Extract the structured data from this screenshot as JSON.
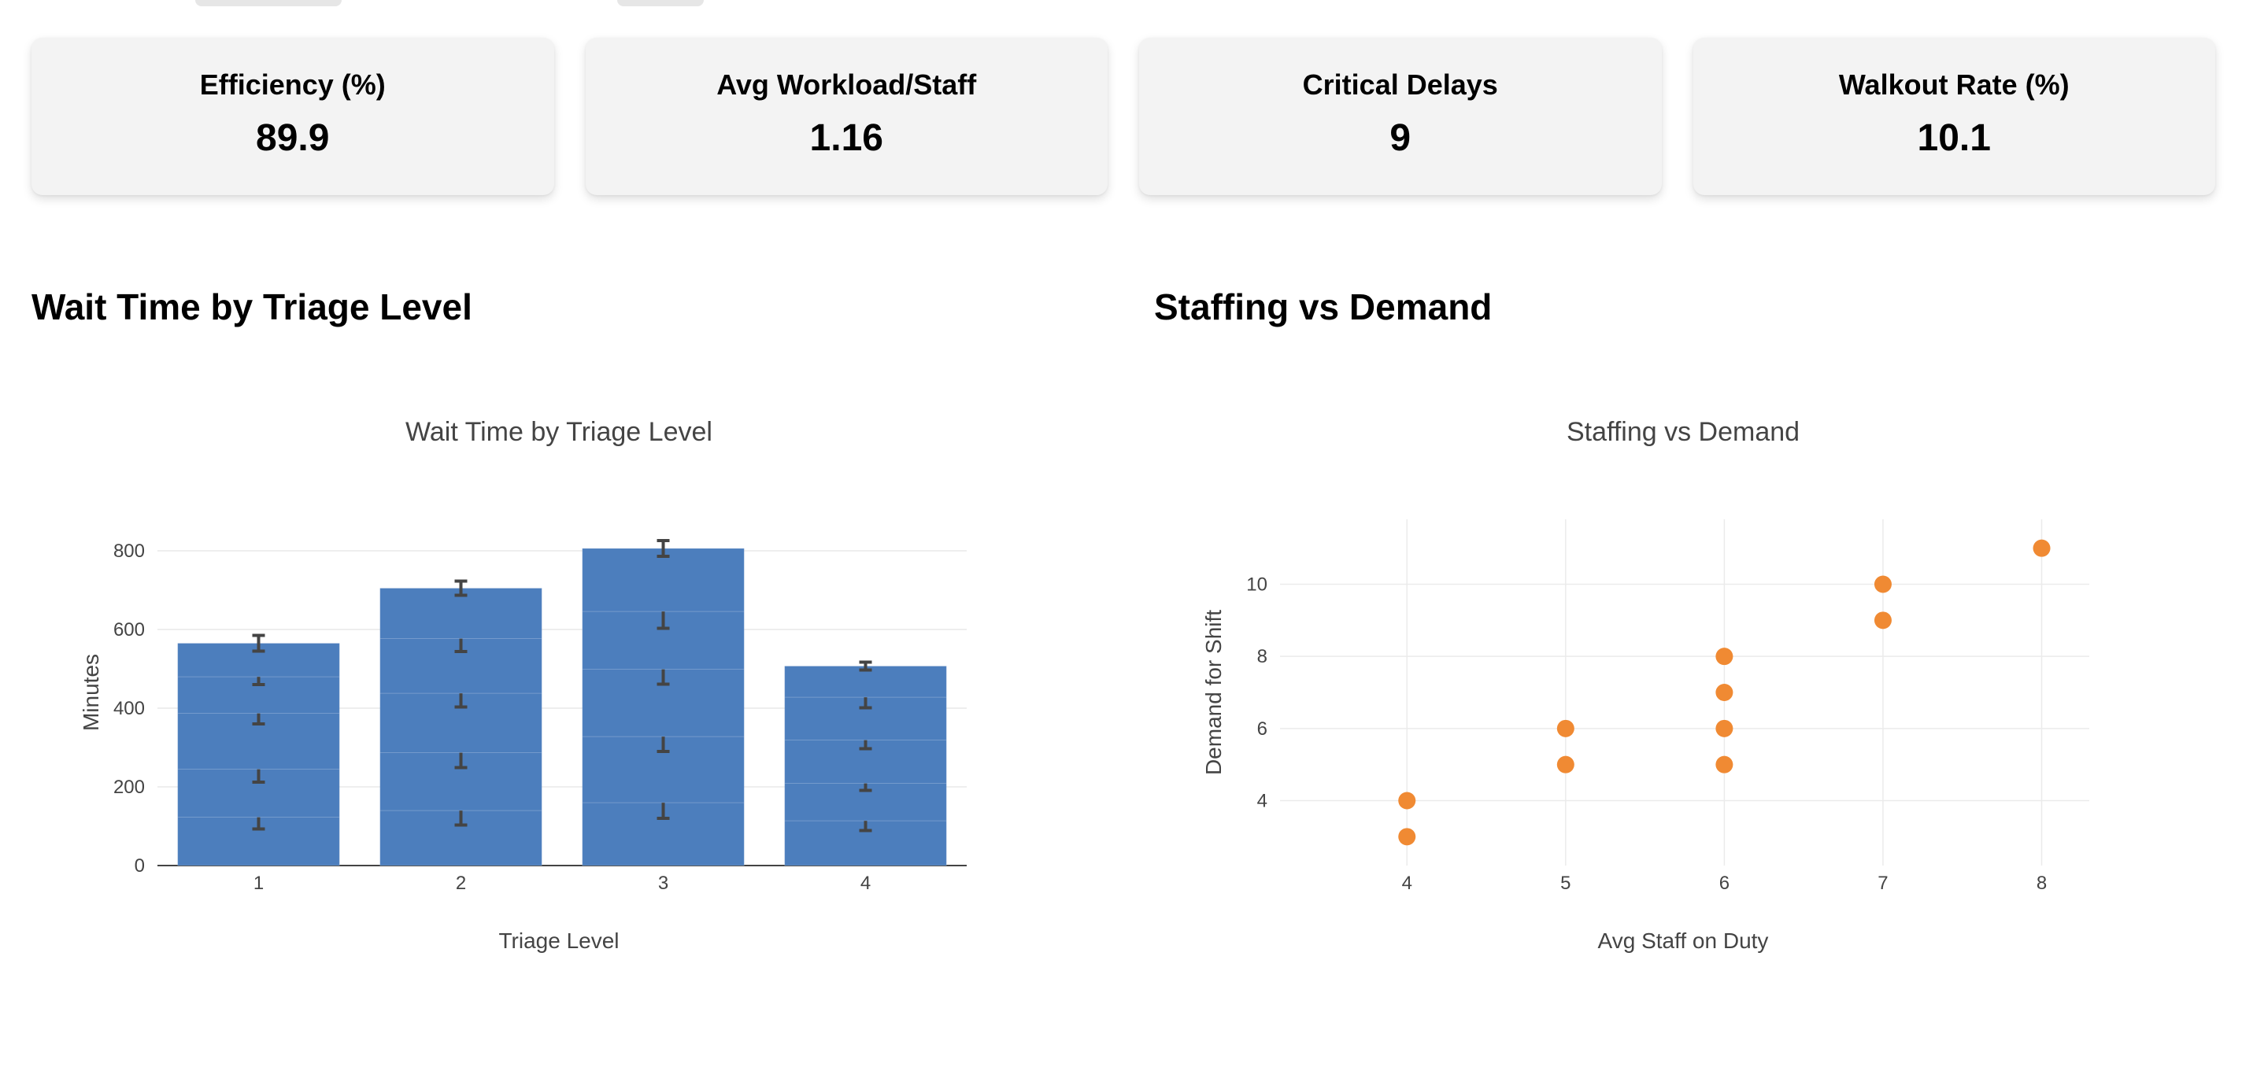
{
  "kpis": [
    {
      "label": "Efficiency (%)",
      "value": "89.9"
    },
    {
      "label": "Avg Workload/Staff",
      "value": "1.16"
    },
    {
      "label": "Critical Delays",
      "value": "9"
    },
    {
      "label": "Walkout Rate (%)",
      "value": "10.1"
    }
  ],
  "sections": {
    "left_heading": "Wait Time by Triage Level",
    "right_heading": "Staffing vs Demand"
  },
  "colors": {
    "bar": "#4c7ebd",
    "scatter": "#f08a33",
    "error_bar": "#444444"
  },
  "chart_data": [
    {
      "type": "bar",
      "title": "Wait Time by Triage Level",
      "xlabel": "Triage Level",
      "ylabel": "Minutes",
      "categories": [
        "1",
        "2",
        "3",
        "4"
      ],
      "ylim": [
        0,
        880
      ],
      "yticks": [
        0,
        200,
        400,
        600,
        800
      ],
      "grid": true,
      "stacked": true,
      "segments": [
        [
          {
            "value": 123,
            "err": 30
          },
          {
            "value": 122,
            "err": 33
          },
          {
            "value": 142,
            "err": 27
          },
          {
            "value": 93,
            "err": 20
          },
          {
            "value": 85,
            "err": 20
          }
        ],
        [
          {
            "value": 140,
            "err": 37
          },
          {
            "value": 147,
            "err": 38
          },
          {
            "value": 151,
            "err": 35
          },
          {
            "value": 139,
            "err": 33
          },
          {
            "value": 128,
            "err": 18
          }
        ],
        [
          {
            "value": 160,
            "err": 40
          },
          {
            "value": 168,
            "err": 38
          },
          {
            "value": 171,
            "err": 38
          },
          {
            "value": 147,
            "err": 43
          },
          {
            "value": 160,
            "err": 20
          }
        ],
        [
          {
            "value": 114,
            "err": 25
          },
          {
            "value": 95,
            "err": 18
          },
          {
            "value": 110,
            "err": 22
          },
          {
            "value": 109,
            "err": 27
          },
          {
            "value": 79,
            "err": 10
          }
        ]
      ]
    },
    {
      "type": "scatter",
      "title": "Staffing vs Demand",
      "xlabel": "Avg Staff on Duty",
      "ylabel": "Demand for Shift",
      "xticks": [
        4,
        5,
        6,
        7,
        8
      ],
      "yticks": [
        4,
        6,
        8,
        10
      ],
      "xlim": [
        3.2,
        8.3
      ],
      "ylim": [
        2.2,
        11.8
      ],
      "grid": true,
      "points": [
        {
          "x": 4,
          "y": 4
        },
        {
          "x": 4,
          "y": 3
        },
        {
          "x": 5,
          "y": 6
        },
        {
          "x": 5,
          "y": 5
        },
        {
          "x": 6,
          "y": 8
        },
        {
          "x": 6,
          "y": 7
        },
        {
          "x": 6,
          "y": 6
        },
        {
          "x": 6,
          "y": 5
        },
        {
          "x": 7,
          "y": 10
        },
        {
          "x": 7,
          "y": 9
        },
        {
          "x": 8,
          "y": 11
        }
      ]
    }
  ]
}
